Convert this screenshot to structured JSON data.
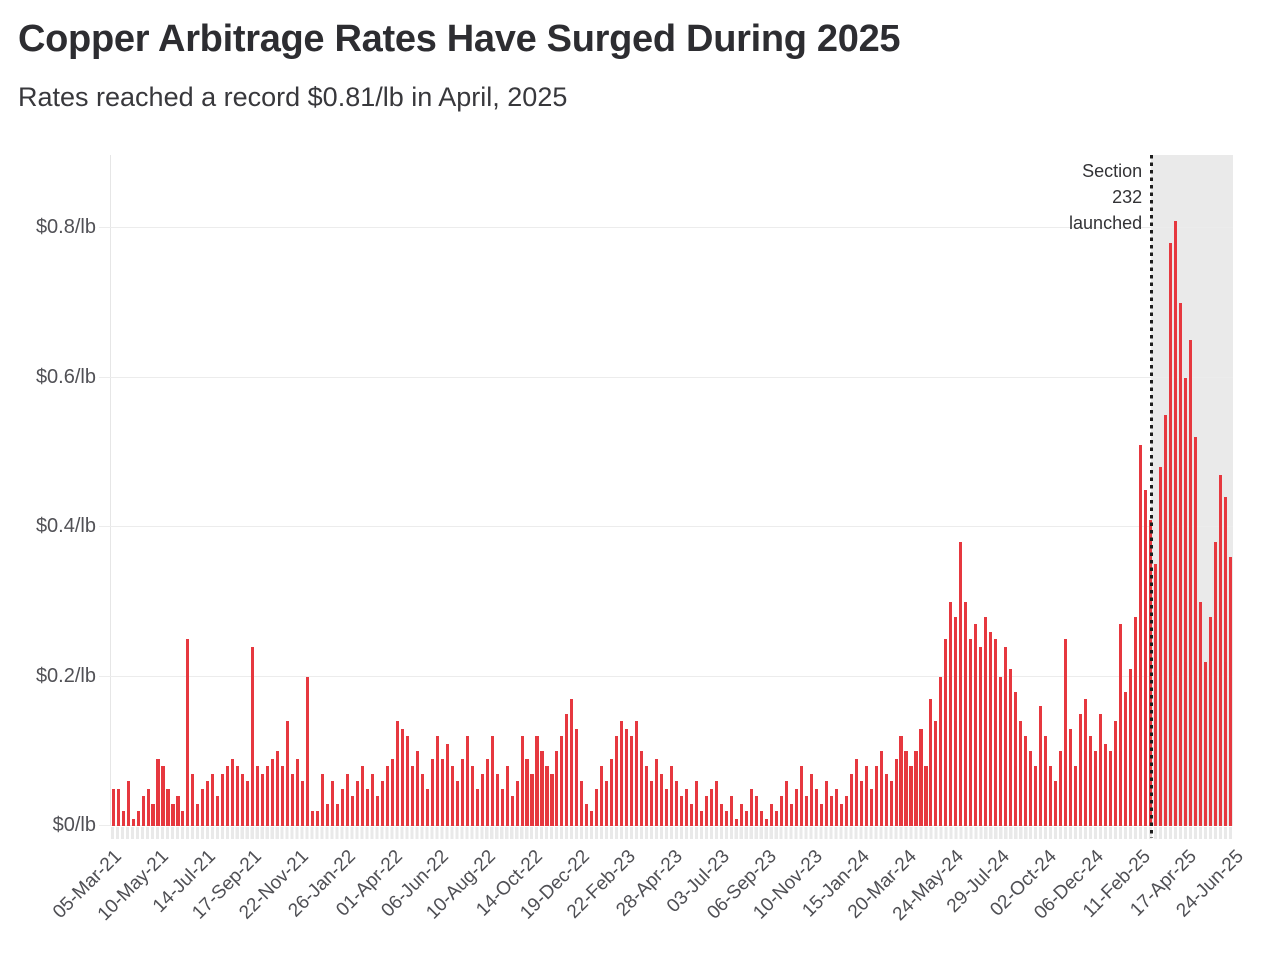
{
  "header": {
    "title": "Copper Arbitrage Rates Have Surged During 2025",
    "subtitle": "Rates reached a record $0.81/lb in April, 2025"
  },
  "chart_data": {
    "type": "bar",
    "title": "Copper Arbitrage Rates Have Surged During 2025",
    "subtitle": "Rates reached a record $0.81/lb in April, 2025",
    "unit": "$/lb",
    "frequency": "weekly",
    "x_start_date": "05-Mar-21",
    "x_end_date": "24-Jun-25",
    "bar_color": "#e6383f",
    "grid": "on",
    "ylim": [
      0,
      0.9
    ],
    "ytick_values": [
      0,
      0.2,
      0.4,
      0.6,
      0.8
    ],
    "ytick_labels": [
      "$0/lb",
      "$0.2/lb",
      "$0.4/lb",
      "$0.6/lb",
      "$0.8/lb"
    ],
    "xtick_labels": [
      "05-Mar-21",
      "10-May-21",
      "14-Jul-21",
      "17-Sep-21",
      "22-Nov-21",
      "26-Jan-22",
      "01-Apr-22",
      "06-Jun-22",
      "10-Aug-22",
      "14-Oct-22",
      "19-Dec-22",
      "22-Feb-23",
      "28-Apr-23",
      "03-Jul-23",
      "06-Sep-23",
      "10-Nov-23",
      "15-Jan-24",
      "20-Mar-24",
      "24-May-24",
      "29-Jul-24",
      "02-Oct-24",
      "06-Dec-24",
      "11-Feb-25",
      "17-Apr-25",
      "24-Jun-25"
    ],
    "annotation": {
      "label": "Section 232 launched",
      "lines": [
        "Section",
        "232",
        "launched"
      ],
      "x_fraction": 0.927,
      "line_style": "dotted",
      "line_color": "#1d1d1d",
      "shaded_region_color": "#eaeaea"
    },
    "record_value": 0.81,
    "values": [
      0.05,
      0.05,
      0.02,
      0.06,
      0.01,
      0.02,
      0.04,
      0.05,
      0.03,
      0.09,
      0.08,
      0.05,
      0.03,
      0.04,
      0.02,
      0.25,
      0.07,
      0.03,
      0.05,
      0.06,
      0.07,
      0.04,
      0.07,
      0.08,
      0.09,
      0.08,
      0.07,
      0.06,
      0.24,
      0.08,
      0.07,
      0.08,
      0.09,
      0.1,
      0.08,
      0.14,
      0.07,
      0.09,
      0.06,
      0.2,
      0.02,
      0.02,
      0.07,
      0.03,
      0.06,
      0.03,
      0.05,
      0.07,
      0.04,
      0.06,
      0.08,
      0.05,
      0.07,
      0.04,
      0.06,
      0.08,
      0.09,
      0.14,
      0.13,
      0.12,
      0.08,
      0.1,
      0.07,
      0.05,
      0.09,
      0.12,
      0.09,
      0.11,
      0.08,
      0.06,
      0.09,
      0.12,
      0.08,
      0.05,
      0.07,
      0.09,
      0.12,
      0.07,
      0.05,
      0.08,
      0.04,
      0.06,
      0.12,
      0.09,
      0.07,
      0.12,
      0.1,
      0.08,
      0.07,
      0.1,
      0.12,
      0.15,
      0.17,
      0.13,
      0.06,
      0.03,
      0.02,
      0.05,
      0.08,
      0.06,
      0.09,
      0.12,
      0.14,
      0.13,
      0.12,
      0.14,
      0.1,
      0.08,
      0.06,
      0.09,
      0.07,
      0.05,
      0.08,
      0.06,
      0.04,
      0.05,
      0.03,
      0.06,
      0.02,
      0.04,
      0.05,
      0.06,
      0.03,
      0.02,
      0.04,
      0.01,
      0.03,
      0.02,
      0.05,
      0.04,
      0.02,
      0.01,
      0.03,
      0.02,
      0.04,
      0.06,
      0.03,
      0.05,
      0.08,
      0.04,
      0.07,
      0.05,
      0.03,
      0.06,
      0.04,
      0.05,
      0.03,
      0.04,
      0.07,
      0.09,
      0.06,
      0.08,
      0.05,
      0.08,
      0.1,
      0.07,
      0.06,
      0.09,
      0.12,
      0.1,
      0.08,
      0.1,
      0.13,
      0.08,
      0.17,
      0.14,
      0.2,
      0.25,
      0.3,
      0.28,
      0.38,
      0.3,
      0.25,
      0.27,
      0.24,
      0.28,
      0.26,
      0.25,
      0.2,
      0.24,
      0.21,
      0.18,
      0.14,
      0.12,
      0.1,
      0.08,
      0.16,
      0.12,
      0.08,
      0.06,
      0.1,
      0.25,
      0.13,
      0.08,
      0.15,
      0.17,
      0.12,
      0.1,
      0.15,
      0.11,
      0.1,
      0.14,
      0.27,
      0.18,
      0.21,
      0.28,
      0.51,
      0.45,
      0.41,
      0.35,
      0.48,
      0.55,
      0.78,
      0.81,
      0.7,
      0.6,
      0.65,
      0.52,
      0.3,
      0.22,
      0.28,
      0.38,
      0.47,
      0.44,
      0.36
    ]
  }
}
